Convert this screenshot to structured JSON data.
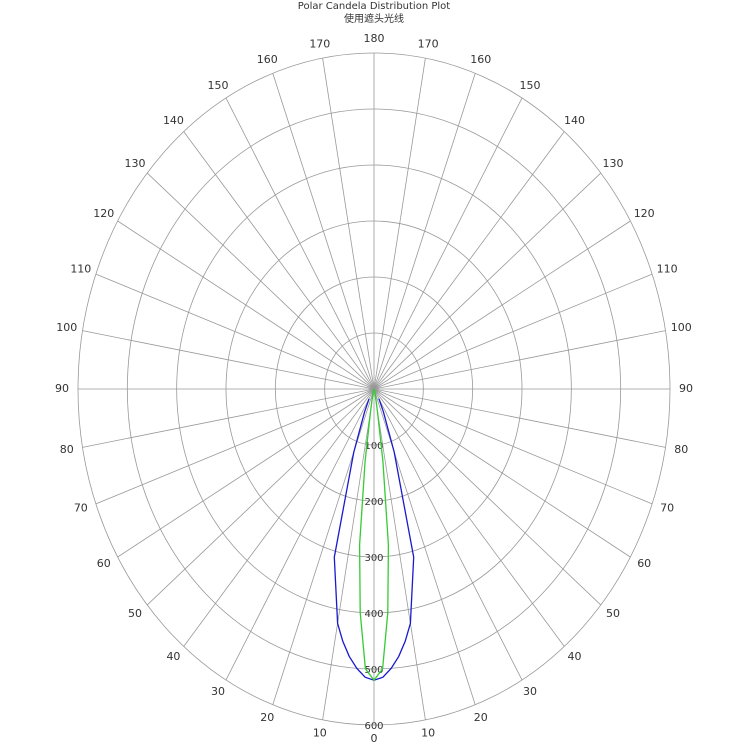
{
  "chart_data": {
    "type": "polar",
    "title": "Polar Candela Distribution Plot",
    "subtitle": "使用遮头光线",
    "rlim": [
      0,
      600
    ],
    "rticks": [
      100,
      200,
      300,
      400,
      500,
      600
    ],
    "angle_ticks": [
      0,
      10,
      20,
      30,
      40,
      50,
      60,
      70,
      80,
      90,
      100,
      110,
      120,
      130,
      140,
      150,
      160,
      170,
      180
    ],
    "x": [
      -30,
      -25,
      -20,
      -15,
      -10,
      -8,
      -6,
      -4,
      -2,
      0,
      2,
      4,
      6,
      8,
      10,
      15,
      20,
      25,
      30
    ],
    "series": [
      {
        "color": "#1a1acc",
        "values": [
          20,
          45,
          120,
          311,
          425,
          455,
          480,
          500,
          515,
          520,
          515,
          500,
          480,
          455,
          425,
          311,
          120,
          45,
          20
        ]
      },
      {
        "color": "#33cc33",
        "values": [
          0,
          0,
          0,
          10,
          40,
          130,
          280,
          400,
          500,
          520,
          500,
          400,
          280,
          130,
          40,
          10,
          0,
          0,
          0
        ]
      }
    ]
  }
}
